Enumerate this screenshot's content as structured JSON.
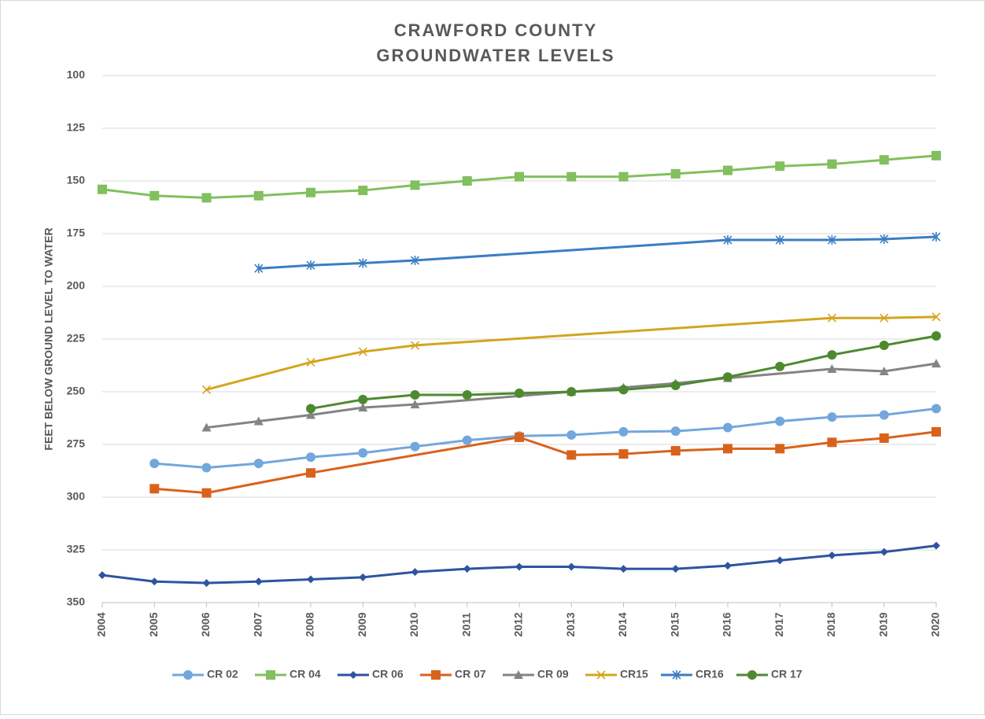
{
  "chart_data": {
    "type": "line",
    "title": [
      "CRAWFORD COUNTY",
      "GROUNDWATER LEVELS"
    ],
    "y_label": "FEET BELOW GROUND LEVEL TO WATER",
    "x": [
      2004,
      2005,
      2006,
      2007,
      2008,
      2009,
      2010,
      2011,
      2012,
      2013,
      2014,
      2015,
      2016,
      2017,
      2018,
      2019,
      2020
    ],
    "xlim": [
      2004,
      2020
    ],
    "xticks": [
      2004,
      2005,
      2006,
      2007,
      2008,
      2009,
      2010,
      2011,
      2012,
      2013,
      2014,
      2015,
      2016,
      2017,
      2018,
      2019,
      2020
    ],
    "ylim": [
      100,
      350
    ],
    "y_reversed": true,
    "yticks": [
      100,
      125,
      150,
      175,
      200,
      225,
      250,
      275,
      300,
      325,
      350
    ],
    "grid": true,
    "connect_gaps": true,
    "legend": "bottom",
    "series": [
      {
        "name": "CR 02",
        "color": "#72a7dc",
        "marker": "circle",
        "values": [
          null,
          284,
          286,
          284,
          281,
          279,
          276,
          273,
          271,
          270.5,
          269,
          268.7,
          267,
          264,
          262,
          261,
          258
        ]
      },
      {
        "name": "CR 04",
        "color": "#82bf5e",
        "marker": "square",
        "values": [
          154,
          157,
          158,
          157,
          155.5,
          154.5,
          152,
          150,
          148,
          148,
          148,
          146.6,
          145,
          143,
          142,
          140,
          138
        ]
      },
      {
        "name": "CR 06",
        "color": "#2e54a0",
        "marker": "diamond",
        "values": [
          337,
          340,
          340.7,
          340,
          339,
          338,
          335.5,
          334,
          333,
          333,
          334,
          334,
          332.5,
          330,
          327.6,
          326,
          323
        ]
      },
      {
        "name": "CR 07",
        "color": "#d9621b",
        "marker": "square",
        "values": [
          null,
          296,
          298,
          null,
          288.5,
          null,
          null,
          null,
          271.6,
          280,
          279.5,
          278,
          277,
          277,
          274,
          272,
          269
        ]
      },
      {
        "name": "CR 09",
        "color": "#848484",
        "marker": "triangle",
        "values": [
          null,
          null,
          267,
          264,
          261,
          257.5,
          256,
          null,
          null,
          250,
          248,
          246,
          243.5,
          null,
          239.2,
          240.3,
          236.6
        ]
      },
      {
        "name": "CR15",
        "color": "#d4a520",
        "marker": "x",
        "values": [
          null,
          null,
          249,
          null,
          236,
          231,
          228,
          null,
          null,
          null,
          null,
          null,
          null,
          null,
          215,
          215,
          214.5
        ]
      },
      {
        "name": "CR16",
        "color": "#3b7ec3",
        "marker": "star",
        "values": [
          null,
          null,
          null,
          191.5,
          190,
          189,
          187.7,
          null,
          null,
          null,
          null,
          null,
          178,
          178,
          178,
          177.6,
          176.5
        ]
      },
      {
        "name": "CR 17",
        "color": "#4d8a2f",
        "marker": "circle",
        "values": [
          null,
          null,
          null,
          null,
          258,
          253.7,
          251.5,
          251.5,
          250.7,
          250,
          249,
          247,
          243,
          238,
          232.5,
          228,
          223.5
        ]
      }
    ]
  }
}
